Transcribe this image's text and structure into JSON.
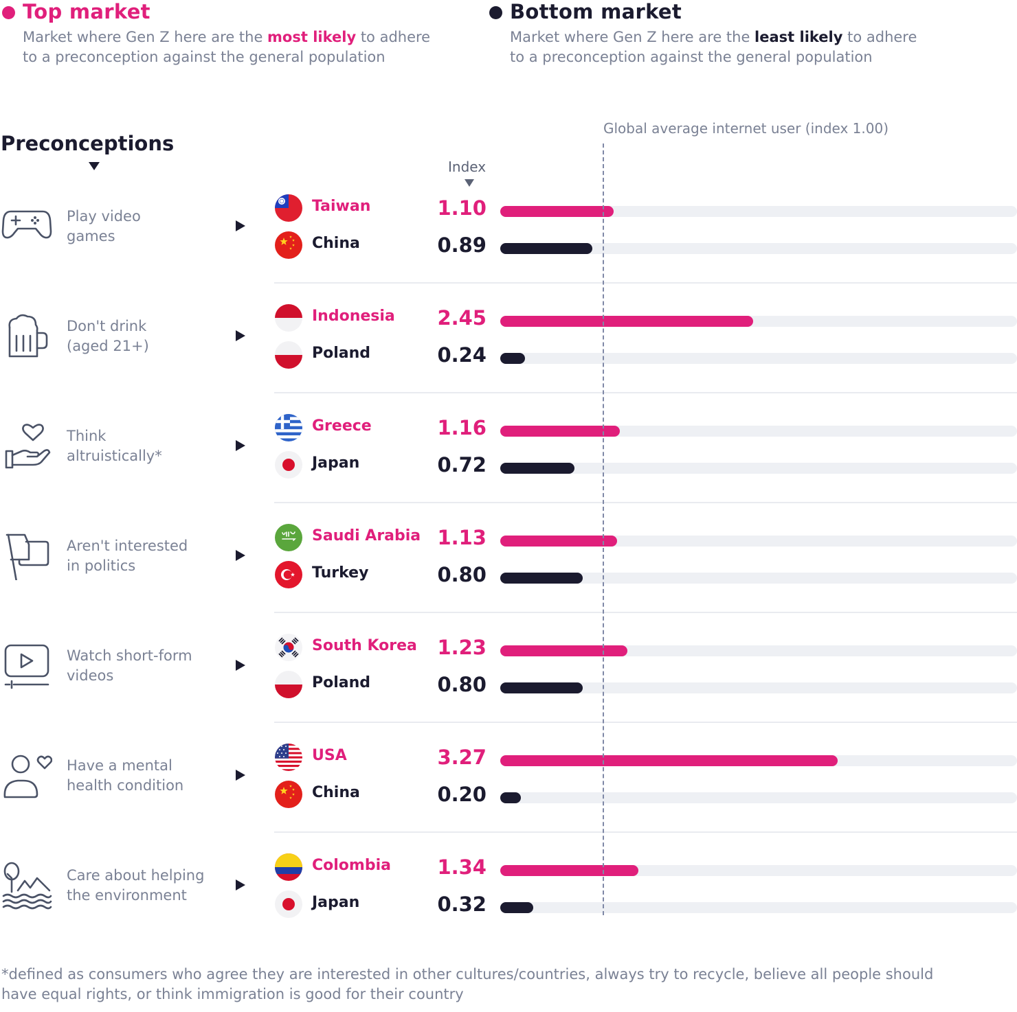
{
  "legend": {
    "top": {
      "title": "Top market",
      "desc_line1_before": "Market where Gen Z here are the ",
      "desc_line1_em": "most likely",
      "desc_line1_after": " to adhere",
      "desc_line2": "to a preconception against the general population",
      "color": "#e01f7b"
    },
    "bottom": {
      "title": "Bottom market",
      "desc_line1_before": "Market where Gen Z here are the ",
      "desc_line1_em": "least likely",
      "desc_line1_after": " to adhere",
      "desc_line2": "to a preconception against the general population",
      "color": "#1b1b2f"
    }
  },
  "section_title": "Preconceptions",
  "index_label": "Index",
  "reference_label": "Global average internet user (index 1.00)",
  "footnote_line1": "*defined as consumers who agree they are interested in other cultures/countries, always try to recycle, believe all people should",
  "footnote_line2": "have equal rights, or think immigration is good for their country",
  "chart_data": {
    "type": "bar",
    "orientation": "horizontal",
    "reference_value": 1.0,
    "xlim": [
      0,
      5
    ],
    "grid": false,
    "series_colors": {
      "top": "#e01f7b",
      "bottom": "#1b1b2f"
    },
    "rows": [
      {
        "icon": "gamepad-icon",
        "label_lines": [
          "Play video",
          "games"
        ],
        "top": {
          "country": "Taiwan",
          "flag": "taiwan-flag-icon",
          "value": 1.1,
          "label": "1.10"
        },
        "bottom": {
          "country": "China",
          "flag": "china-flag-icon",
          "value": 0.89,
          "label": "0.89"
        }
      },
      {
        "icon": "beer-mug-icon",
        "label_lines": [
          "Don't drink",
          "(aged 21+)"
        ],
        "top": {
          "country": "Indonesia",
          "flag": "indonesia-flag-icon",
          "value": 2.45,
          "label": "2.45"
        },
        "bottom": {
          "country": "Poland",
          "flag": "poland-flag-icon",
          "value": 0.24,
          "label": "0.24"
        }
      },
      {
        "icon": "heart-hand-icon",
        "label_lines": [
          "Think",
          "altruistically*"
        ],
        "top": {
          "country": "Greece",
          "flag": "greece-flag-icon",
          "value": 1.16,
          "label": "1.16"
        },
        "bottom": {
          "country": "Japan",
          "flag": "japan-flag-icon",
          "value": 0.72,
          "label": "0.72"
        }
      },
      {
        "icon": "flag-icon",
        "label_lines": [
          "Aren't interested",
          "in politics"
        ],
        "top": {
          "country": "Saudi Arabia",
          "flag": "saudi-arabia-flag-icon",
          "value": 1.13,
          "label": "1.13"
        },
        "bottom": {
          "country": "Turkey",
          "flag": "turkey-flag-icon",
          "value": 0.8,
          "label": "0.80"
        }
      },
      {
        "icon": "video-play-icon",
        "label_lines": [
          "Watch short-form",
          "videos"
        ],
        "top": {
          "country": "South Korea",
          "flag": "south-korea-flag-icon",
          "value": 1.23,
          "label": "1.23"
        },
        "bottom": {
          "country": "Poland",
          "flag": "poland-flag-icon",
          "value": 0.8,
          "label": "0.80"
        }
      },
      {
        "icon": "person-heart-icon",
        "label_lines": [
          "Have a mental",
          "health condition"
        ],
        "top": {
          "country": "USA",
          "flag": "usa-flag-icon",
          "value": 3.27,
          "label": "3.27"
        },
        "bottom": {
          "country": "China",
          "flag": "china-flag-icon",
          "value": 0.2,
          "label": "0.20"
        }
      },
      {
        "icon": "nature-landscape-icon",
        "label_lines": [
          "Care about helping",
          "the environment"
        ],
        "top": {
          "country": "Colombia",
          "flag": "colombia-flag-icon",
          "value": 1.34,
          "label": "1.34"
        },
        "bottom": {
          "country": "Japan",
          "flag": "japan-flag-icon",
          "value": 0.32,
          "label": "0.32"
        }
      }
    ]
  }
}
